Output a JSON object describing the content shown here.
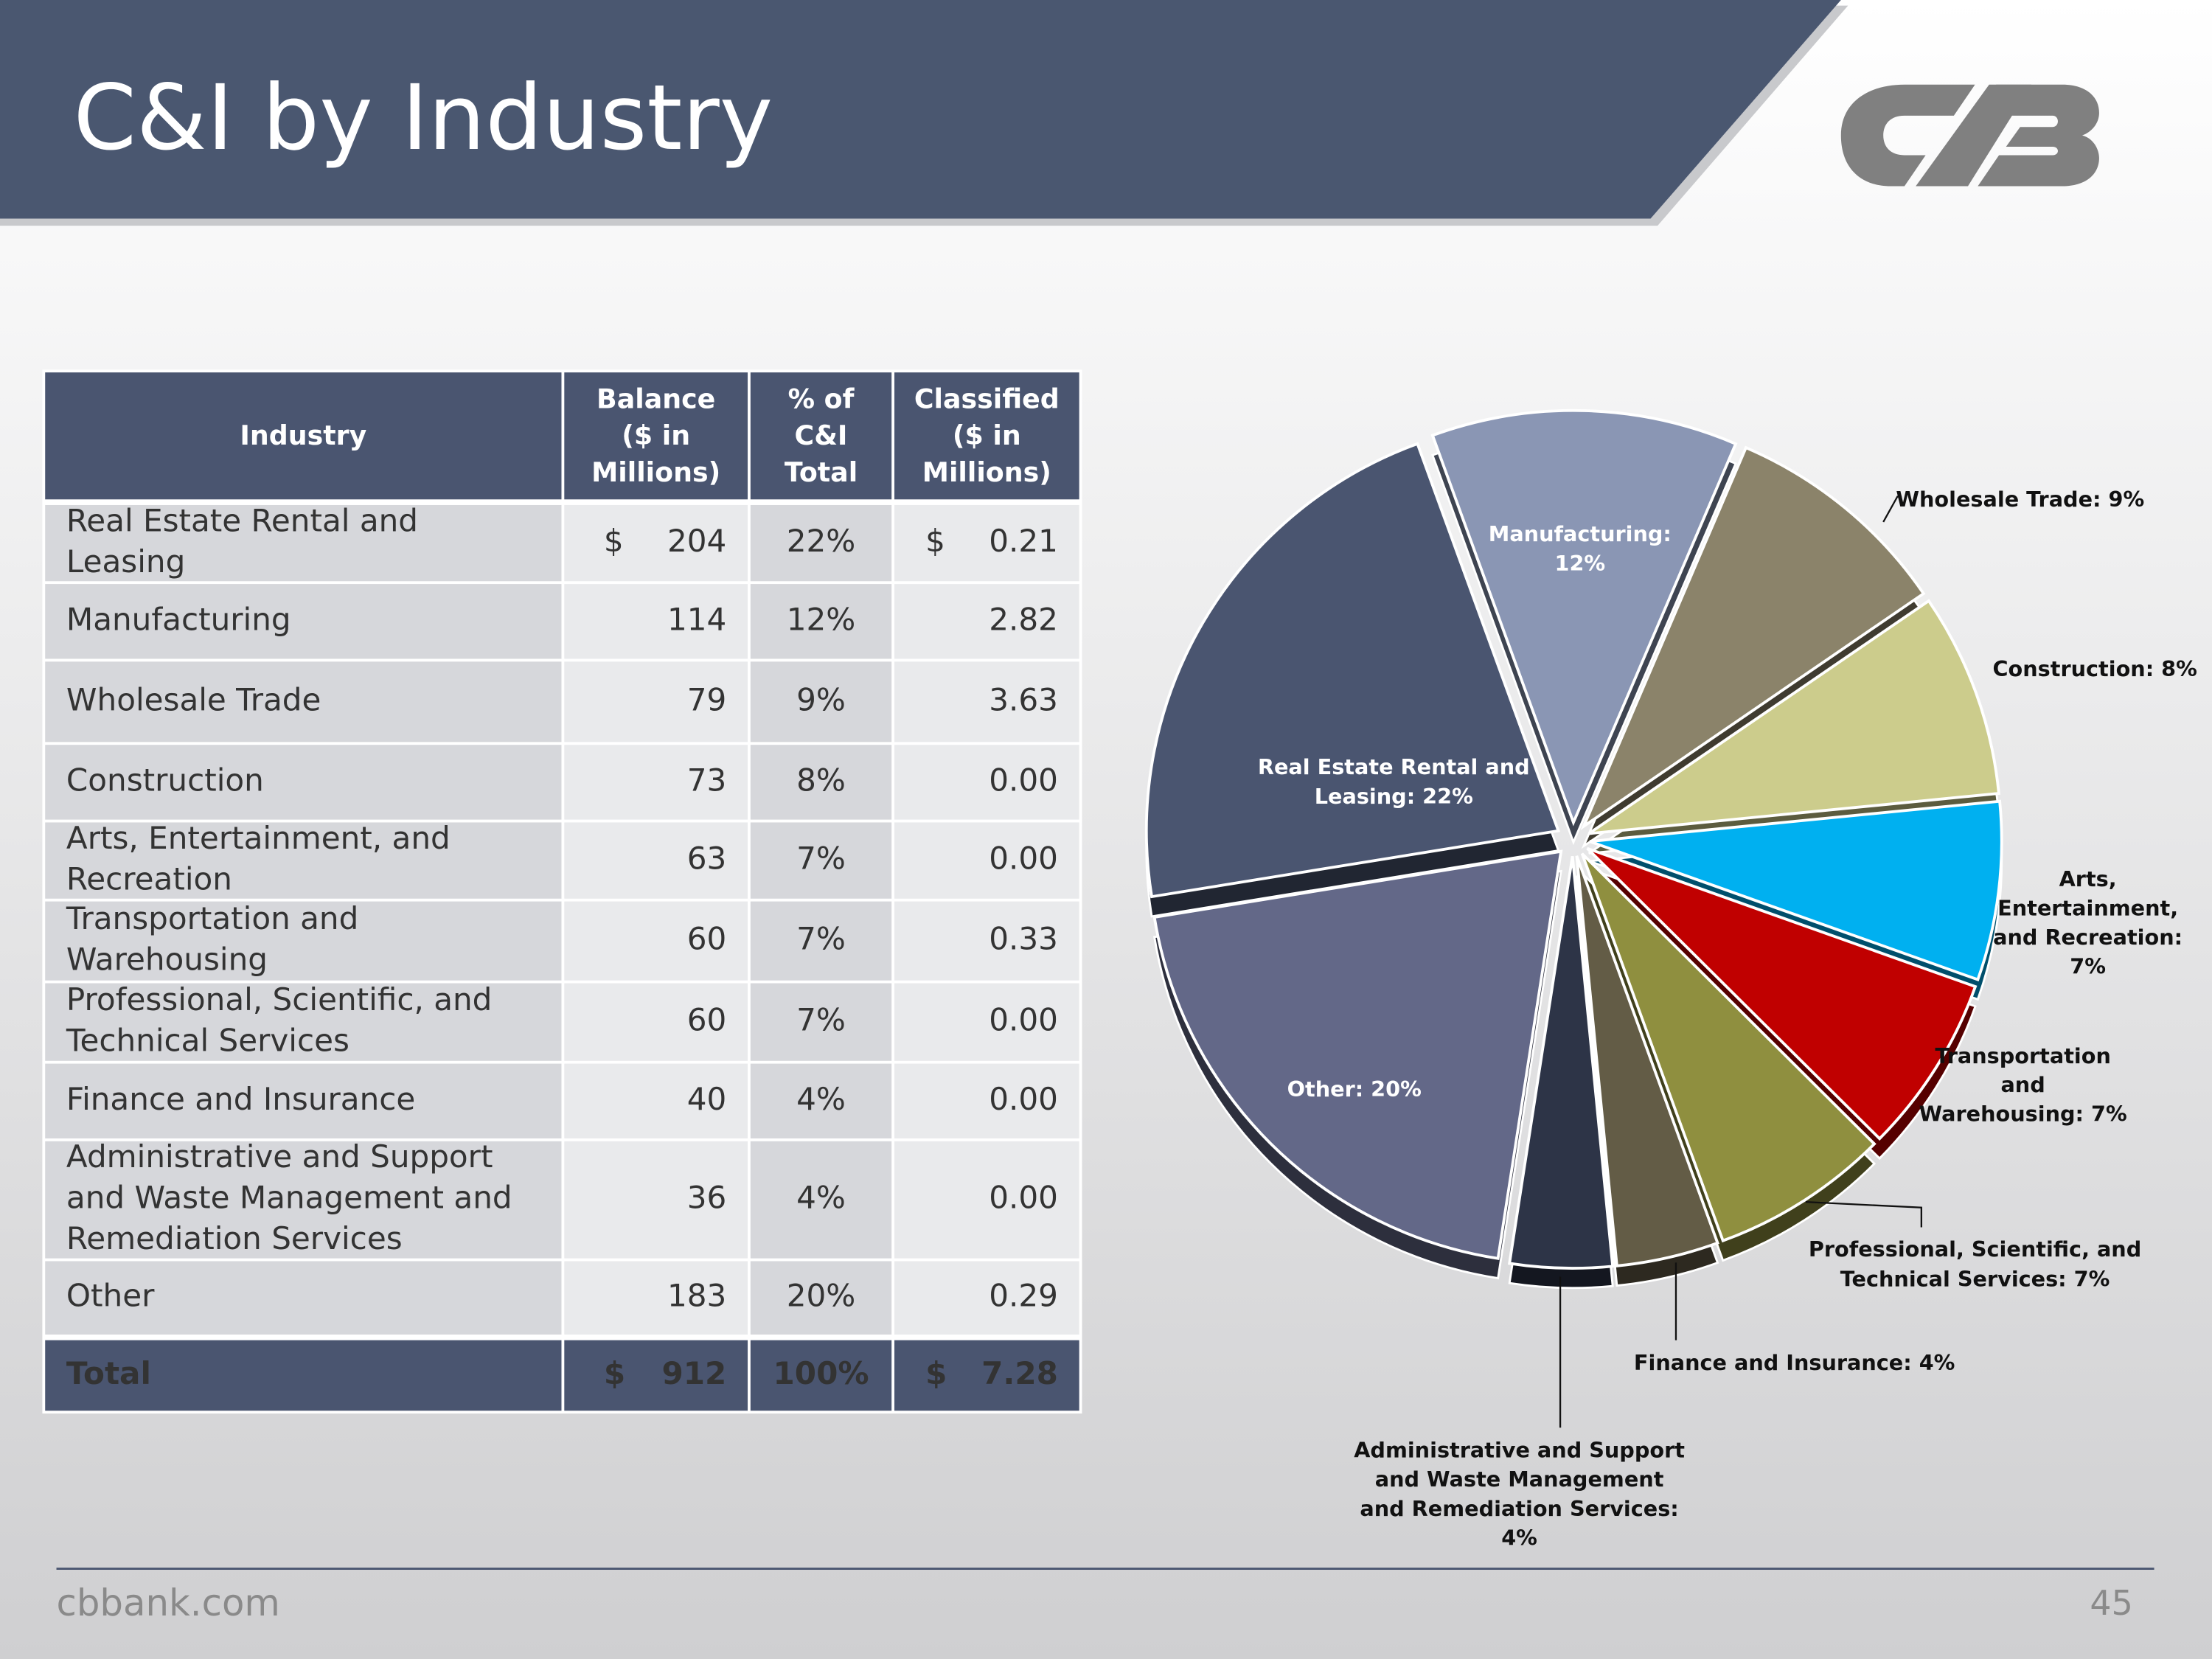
{
  "title": "C&I by Industry",
  "table": {
    "header": [
      [
        "Industry"
      ],
      [
        "Balance",
        "($ in",
        "Millions)"
      ],
      [
        "% of",
        "C&I",
        "Total"
      ],
      [
        "Classified",
        "($ in",
        "Millions)"
      ]
    ],
    "rows": [
      {
        "industry": [
          "Real Estate Rental and",
          "Leasing"
        ],
        "currency": "$",
        "balance": "204",
        "pct": "22%",
        "classified": "0.21"
      },
      {
        "industry": [
          "Manufacturing"
        ],
        "balance": "114",
        "pct": "12%",
        "classified": "2.82"
      },
      {
        "industry": [
          "Wholesale Trade"
        ],
        "balance": "79",
        "pct": "9%",
        "classified": "3.63"
      },
      {
        "industry": [
          "Construction"
        ],
        "balance": "73",
        "pct": "8%",
        "classified": "0.00"
      },
      {
        "industry": [
          "Arts, Entertainment, and",
          "Recreation"
        ],
        "balance": "63",
        "pct": "7%",
        "classified": "0.00"
      },
      {
        "industry": [
          "Transportation and",
          "Warehousing"
        ],
        "balance": "60",
        "pct": "7%",
        "classified": "0.33"
      },
      {
        "industry": [
          "Professional, Scientific, and",
          "Technical Services"
        ],
        "balance": "60",
        "pct": "7%",
        "classified": "0.00"
      },
      {
        "industry": [
          "Finance and Insurance"
        ],
        "balance": "40",
        "pct": "4%",
        "classified": "0.00"
      },
      {
        "industry": [
          "Administrative and Support",
          "and Waste Management and",
          "Remediation Services"
        ],
        "balance": "36",
        "pct": "4%",
        "classified": "0.00"
      },
      {
        "industry": [
          "Other"
        ],
        "balance": "183",
        "pct": "20%",
        "classified": "0.29"
      }
    ],
    "total": {
      "industry": [
        "Total"
      ],
      "currency": "$",
      "balance": "912",
      "pct": "100%",
      "classified": "7.28"
    }
  },
  "chart_data": {
    "type": "pie",
    "values": [
      12,
      9,
      8,
      7,
      7,
      7,
      4,
      4,
      20,
      22
    ],
    "value_labels": [
      [
        "Manufacturing:",
        "12%"
      ],
      [
        "Wholesale Trade: 9%"
      ],
      [
        "Construction: 8%"
      ],
      [
        "Arts,",
        "Entertainment,",
        "and Recreation:",
        "7%"
      ],
      [
        "Transportation",
        "and",
        "Warehousing: 7%"
      ],
      [
        "Professional, Scientific, and",
        "Technical Services: 7%"
      ],
      [
        "Finance and Insurance: 4%"
      ],
      [
        "Administrative and Support",
        "and Waste Management",
        "and Remediation Services:",
        "4%"
      ],
      [
        "Other: 20%"
      ],
      [
        "Real Estate Rental and",
        "Leasing: 22%"
      ]
    ],
    "colors": [
      "#8a96b4",
      "#8b836a",
      "#cccc8c",
      "#00b0f0",
      "#c00000",
      "#8f8f3f",
      "#635c46",
      "#2d3447",
      "#636888",
      "#4a5570"
    ]
  },
  "footer": {
    "site": "cbbank.com",
    "page": "45"
  }
}
